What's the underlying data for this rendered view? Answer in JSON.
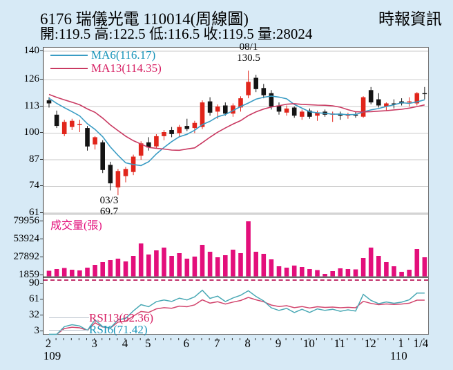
{
  "header": {
    "title": "6176 瑞儀光電 110014(周線圖)",
    "source": "時報資訊",
    "ohlc": "開:119.5 高:122.5 低:116.5 收:119.5 量:28024"
  },
  "legend": {
    "ma6_label": "MA6(116.17)",
    "ma13_label": "MA13(114.35)"
  },
  "volume_panel": {
    "label": "成交量(張)"
  },
  "rsi_panel": {
    "rsi13_label": "RSI13(62.36)",
    "rsi6_label": "RSI6(71.42)"
  },
  "annotations": {
    "high_date": "08/1",
    "high_value": "130.5",
    "low_date": "03/3",
    "low_value": "69.7"
  },
  "chart_data": {
    "type": "candlestick",
    "title": "6176 瑞儀光電 110014(周線圖)",
    "price_axis": {
      "ticks": [
        140,
        126,
        113,
        100,
        87,
        74,
        61
      ],
      "range": [
        61,
        140
      ],
      "grid": true
    },
    "volume_axis": {
      "ticks": [
        79956,
        53924,
        27892,
        1859
      ],
      "max": 79956
    },
    "rsi_axis": {
      "ticks": [
        90,
        61,
        32,
        3
      ]
    },
    "x_axis": {
      "months": [
        [
          "2",
          0
        ],
        [
          "3",
          6
        ],
        [
          "4",
          10
        ],
        [
          "5",
          13
        ],
        [
          "6",
          18
        ],
        [
          "7",
          22
        ],
        [
          "8",
          26
        ],
        [
          "9",
          30
        ],
        [
          "10",
          34
        ],
        [
          "11",
          38
        ],
        [
          "12",
          42
        ],
        [
          "1",
          46
        ],
        [
          "1/4",
          48.6
        ]
      ],
      "eras": [
        [
          "109",
          0.5
        ],
        [
          "110",
          45.7
        ]
      ]
    },
    "high_point": {
      "week": 26,
      "label": "08/1",
      "value": 130.5
    },
    "low_point": {
      "week": 9,
      "label": "03/3",
      "value": 69.7
    },
    "overlays": {
      "ma6_current": 116.17,
      "ma13_current": 114.35,
      "rsi6_current": 71.42,
      "rsi13_current": 62.36
    },
    "candles_format": [
      "open",
      "high",
      "low",
      "close",
      "volume"
    ],
    "candles": [
      [
        116,
        117.5,
        112.5,
        114.5,
        8500
      ],
      [
        109,
        111,
        102.5,
        103.5,
        11000
      ],
      [
        99.5,
        106.5,
        98.5,
        105.5,
        12500
      ],
      [
        103,
        107,
        101.5,
        106,
        10000
      ],
      [
        104,
        106.5,
        100.5,
        104.5,
        9000
      ],
      [
        102.5,
        103.5,
        91.5,
        93.5,
        13000
      ],
      [
        94.5,
        98.5,
        92,
        98,
        17000
      ],
      [
        95.5,
        96.5,
        80.5,
        82,
        21000
      ],
      [
        84.5,
        86,
        72,
        75.5,
        24000
      ],
      [
        73.5,
        82.5,
        69.7,
        81.5,
        26000
      ],
      [
        79,
        83.5,
        76,
        82.5,
        22000
      ],
      [
        81,
        89.5,
        79.5,
        88.5,
        30000
      ],
      [
        89,
        96,
        87,
        95,
        48000
      ],
      [
        95.5,
        98,
        91.5,
        93,
        32000
      ],
      [
        93.5,
        99.5,
        92.5,
        98.5,
        38000
      ],
      [
        98.5,
        101.5,
        96.5,
        100.5,
        42000
      ],
      [
        101.5,
        103,
        98,
        99.5,
        30000
      ],
      [
        100,
        104,
        98,
        103,
        34000
      ],
      [
        103.5,
        107,
        101,
        102,
        26000
      ],
      [
        102.5,
        106,
        100,
        105,
        29000
      ],
      [
        103,
        116,
        102,
        115,
        46000
      ],
      [
        115.5,
        117.5,
        108.5,
        110,
        36000
      ],
      [
        110.5,
        114,
        107,
        113,
        28000
      ],
      [
        113.5,
        115,
        108.5,
        109.5,
        31000
      ],
      [
        109.5,
        114.5,
        108,
        113.5,
        39000
      ],
      [
        112.5,
        118,
        110.5,
        117,
        34000
      ],
      [
        118.5,
        130.5,
        117,
        125,
        79956
      ],
      [
        127,
        128.5,
        120,
        121.5,
        36000
      ],
      [
        122,
        124,
        117,
        118.5,
        33000
      ],
      [
        119.5,
        121,
        111.5,
        113,
        25000
      ],
      [
        113.5,
        115,
        109,
        110.5,
        15000
      ],
      [
        110,
        113.5,
        108.5,
        112,
        13000
      ],
      [
        112.5,
        113,
        107.5,
        108.5,
        16000
      ],
      [
        108,
        111.5,
        106.5,
        110.5,
        14000
      ],
      [
        111,
        112,
        107,
        108,
        11000
      ],
      [
        108.5,
        111,
        106,
        110,
        9500
      ],
      [
        110.5,
        111.5,
        108,
        109,
        4000
      ],
      [
        109,
        110.5,
        105.5,
        109.5,
        8000
      ],
      [
        109.5,
        110.5,
        106.5,
        108.5,
        12000
      ],
      [
        108.5,
        110,
        107,
        109,
        11000
      ],
      [
        109,
        110.5,
        107.5,
        108.5,
        10500
      ],
      [
        108,
        118,
        107.5,
        117.5,
        27000
      ],
      [
        121,
        122.5,
        114,
        115,
        42000
      ],
      [
        116.5,
        119.5,
        112.5,
        113.5,
        30000
      ],
      [
        113,
        115,
        111,
        114.5,
        21000
      ],
      [
        114.5,
        116.5,
        112,
        114,
        15000
      ],
      [
        115.5,
        117,
        113.5,
        114.5,
        7000
      ],
      [
        115,
        117.5,
        113,
        115.5,
        10000
      ],
      [
        114.5,
        120,
        113.5,
        119.5,
        40000
      ],
      [
        119.5,
        122.5,
        116.5,
        119.5,
        28024
      ]
    ],
    "colors": {
      "background": "#d7eaf6",
      "panel": "#ffffff",
      "grid": "#c9c9c9",
      "candle_up": "#e1251b",
      "candle_down": "#141414",
      "ma6": "#3a9cc4",
      "ma13": "#c93a62",
      "volume_bar": "#e30f7b",
      "rsi6": "#4aa9b5",
      "rsi13": "#d2466e"
    }
  }
}
